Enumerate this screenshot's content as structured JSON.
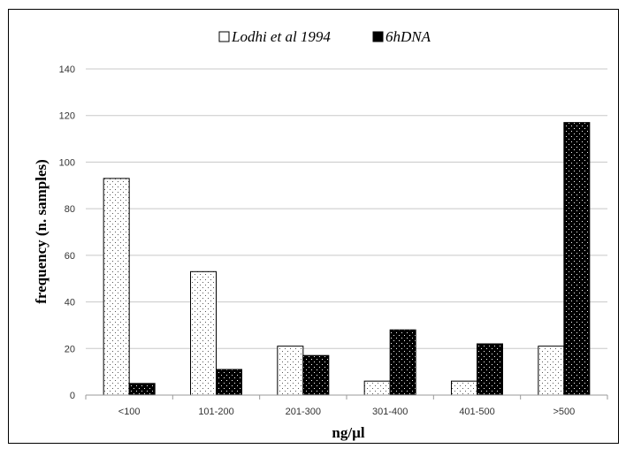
{
  "chart_data": {
    "type": "bar",
    "categories": [
      "<100",
      "101-200",
      "201-300",
      "301-400",
      "401-500",
      ">500"
    ],
    "series": [
      {
        "name": "Lodhi et al 1994",
        "values": [
          93,
          53,
          21,
          6,
          6,
          21
        ],
        "color": "#ffffff",
        "pattern": "sparse-dots"
      },
      {
        "name": "6hDNA",
        "values": [
          5,
          11,
          17,
          28,
          22,
          117
        ],
        "color": "#000000",
        "pattern": "dense-dots"
      }
    ],
    "xlabel": "ng/µl",
    "ylabel": "frequency (n. samples)",
    "ylim": [
      0,
      140
    ],
    "yticks": [
      0,
      20,
      40,
      60,
      80,
      100,
      120,
      140
    ],
    "grid": true,
    "legend_position": "top-center"
  }
}
